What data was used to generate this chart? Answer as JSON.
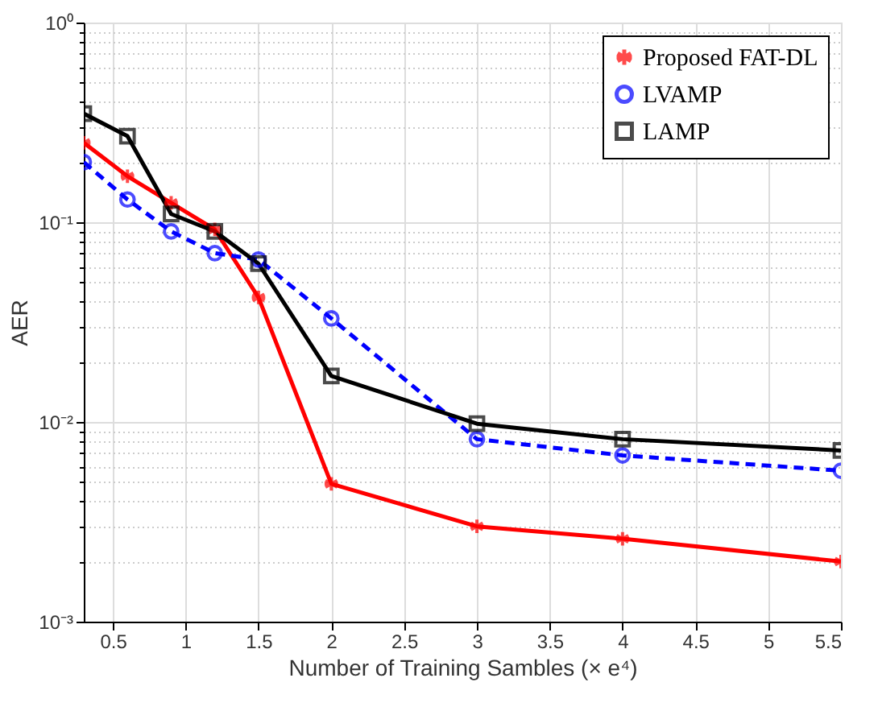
{
  "chart_data": {
    "type": "line",
    "xlabel": "Number of Training Sambles (× e⁴)",
    "ylabel": "AER",
    "log": "y",
    "x": [
      0.3,
      0.6,
      0.9,
      1.2,
      1.5,
      2,
      3,
      4,
      5.5
    ],
    "xlim": [
      0.3,
      5.5
    ],
    "xticks": [
      0.5,
      1,
      1.5,
      2,
      2.5,
      3,
      3.5,
      4,
      4.5,
      5,
      5.5
    ],
    "ylim": [
      0.001,
      1
    ],
    "yticks": [
      {
        "value": 0.001,
        "label": "10⁻³"
      },
      {
        "value": 0.002,
        "label": null
      },
      {
        "value": 0.003,
        "label": null
      },
      {
        "value": 0.004,
        "label": null
      },
      {
        "value": 0.005,
        "label": null
      },
      {
        "value": 0.006,
        "label": null
      },
      {
        "value": 0.007,
        "label": null
      },
      {
        "value": 0.008,
        "label": null
      },
      {
        "value": 0.009,
        "label": null
      },
      {
        "value": 0.01,
        "label": "10⁻²"
      },
      {
        "value": 0.02,
        "label": null
      },
      {
        "value": 0.03,
        "label": null
      },
      {
        "value": 0.04,
        "label": null
      },
      {
        "value": 0.05,
        "label": null
      },
      {
        "value": 0.06,
        "label": null
      },
      {
        "value": 0.07,
        "label": null
      },
      {
        "value": 0.08,
        "label": null
      },
      {
        "value": 0.09,
        "label": null
      },
      {
        "value": 0.1,
        "label": "10⁻¹"
      },
      {
        "value": 0.2,
        "label": null
      },
      {
        "value": 0.3,
        "label": null
      },
      {
        "value": 0.4,
        "label": null
      },
      {
        "value": 0.5,
        "label": null
      },
      {
        "value": 0.6,
        "label": null
      },
      {
        "value": 0.7,
        "label": null
      },
      {
        "value": 0.8,
        "label": null
      },
      {
        "value": 0.9,
        "label": null
      },
      {
        "value": 1,
        "label": "10⁰"
      }
    ],
    "grid": true,
    "legend": "top right",
    "series": [
      {
        "name": "Proposed FAT-DL",
        "color": "#ff0000",
        "marker": "cross",
        "line_style": "solid",
        "values": [
          0.25,
          0.17,
          0.125,
          0.092,
          0.042,
          0.0049,
          0.003,
          0.0026,
          0.002
        ]
      },
      {
        "name": "LVAMP",
        "color": "#0000ff",
        "marker": "circle",
        "line_style": "dashed",
        "values": [
          0.2,
          0.13,
          0.09,
          0.07,
          0.065,
          0.033,
          0.0082,
          0.0068,
          0.0057
        ]
      },
      {
        "name": "LAMP",
        "color": "#000000",
        "marker": "square",
        "line_style": "solid",
        "values": [
          0.35,
          0.27,
          0.11,
          0.09,
          0.062,
          0.017,
          0.0098,
          0.0082,
          0.0072
        ]
      }
    ]
  }
}
